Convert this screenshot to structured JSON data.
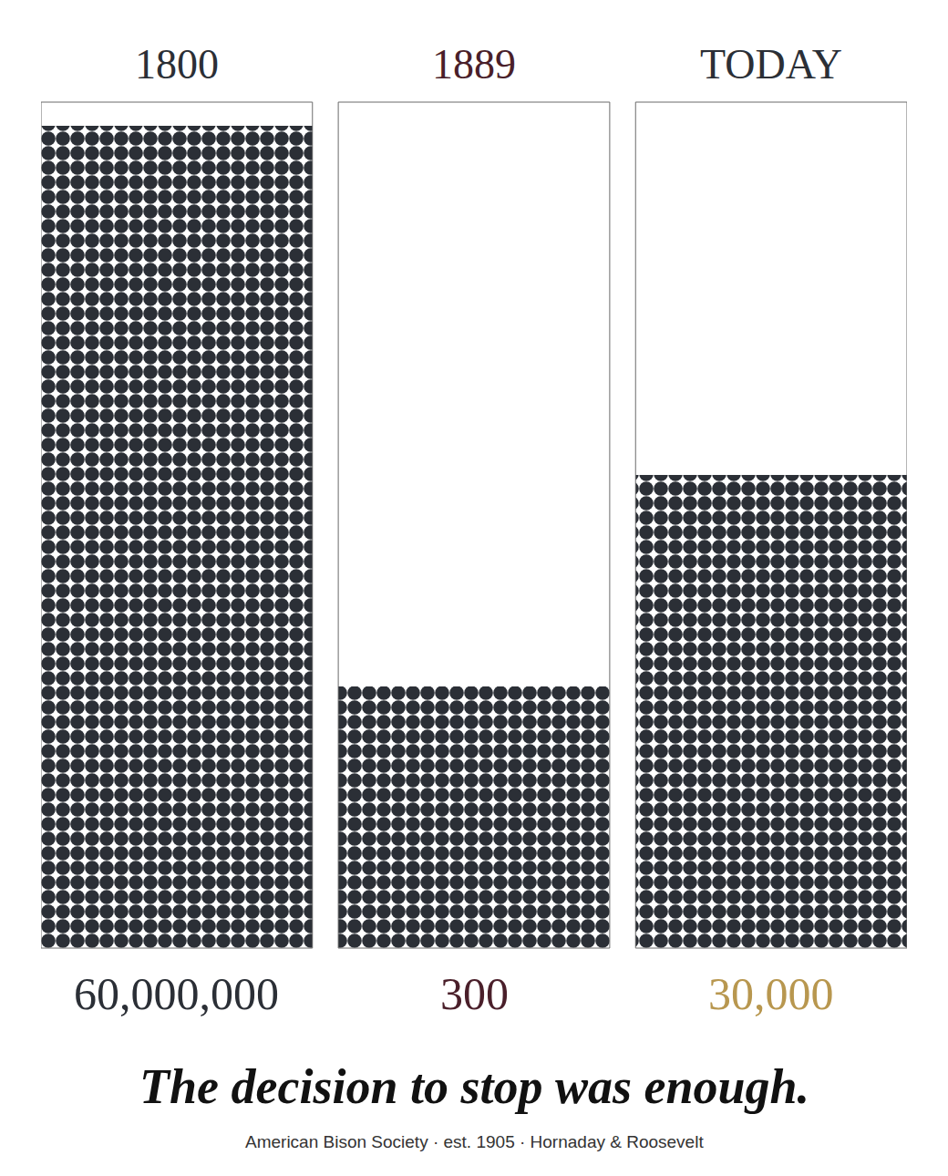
{
  "chart_data": {
    "type": "bar",
    "title": "The decision to stop was enough.",
    "subtitle": "American Bison Society · est. 1905 · Hornaday & Roosevelt",
    "categories": [
      "1800",
      "1889",
      "TODAY"
    ],
    "values": [
      60000000,
      300,
      30000
    ],
    "value_labels": [
      "60,000,000",
      "300",
      "30,000"
    ],
    "color": "#2b2f36",
    "ylim": [
      1,
      100000000
    ],
    "log": "y",
    "grid": false,
    "tick_labels": false,
    "data_labels": true
  }
}
